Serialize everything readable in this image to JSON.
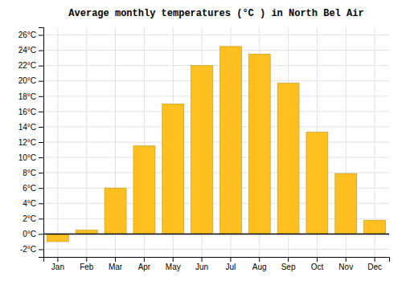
{
  "chart_data": {
    "type": "bar",
    "title": "Average monthly temperatures (°C ) in North Bel Air",
    "categories": [
      "Jan",
      "Feb",
      "Mar",
      "Apr",
      "May",
      "Jun",
      "Jul",
      "Aug",
      "Sep",
      "Oct",
      "Nov",
      "Dec"
    ],
    "values": [
      -1.0,
      0.5,
      6.0,
      11.5,
      17.0,
      22.0,
      24.5,
      23.5,
      19.7,
      13.3,
      7.9,
      1.8
    ],
    "color": "#FFC020",
    "ylim": [
      -3,
      27
    ],
    "yticks": [
      {
        "value": -2,
        "label": "-2°C"
      },
      {
        "value": 0,
        "label": "0°C"
      },
      {
        "value": 2,
        "label": "2°C"
      },
      {
        "value": 4,
        "label": "4°C"
      },
      {
        "value": 6,
        "label": "6°C"
      },
      {
        "value": 8,
        "label": "8°C"
      },
      {
        "value": 10,
        "label": "10°C"
      },
      {
        "value": 12,
        "label": "12°C"
      },
      {
        "value": 14,
        "label": "14°C"
      },
      {
        "value": 16,
        "label": "16°C"
      },
      {
        "value": 18,
        "label": "18°C"
      },
      {
        "value": 20,
        "label": "20°C"
      },
      {
        "value": 22,
        "label": "22°C"
      },
      {
        "value": 24,
        "label": "24°C"
      },
      {
        "value": 26,
        "label": "26°C"
      }
    ],
    "grid": true
  }
}
